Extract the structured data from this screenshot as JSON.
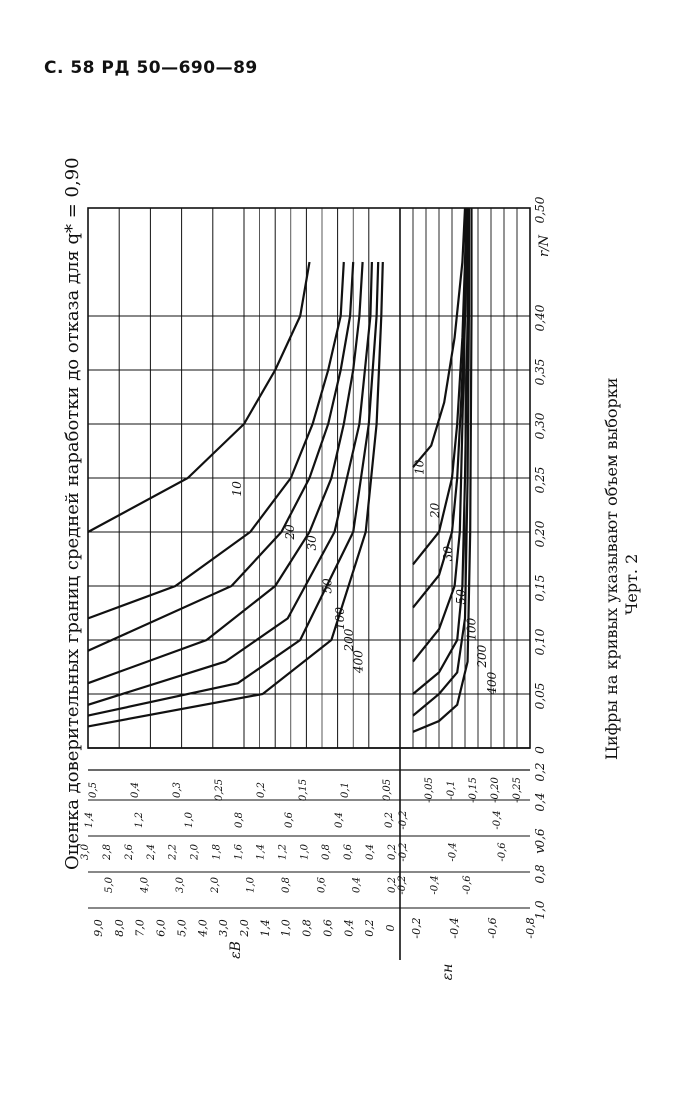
{
  "header": {
    "page_ref": "С. 58 РД 50—690—89"
  },
  "figure": {
    "title": "Оценка доверительных границ средней наработки до отказа для q* = 0,90",
    "note": "Цифры на кривых указывают объем выборки",
    "caption": "Черт. 2"
  },
  "chart_data": {
    "type": "line",
    "x_label": "r/N",
    "x_ticks": [
      "0",
      "0,05",
      "0,10",
      "0,15",
      "0,20",
      "0,25",
      "0,30",
      "0,35",
      "0,40",
      "0,50"
    ],
    "x_tick_values": [
      0,
      0.05,
      0.1,
      0.15,
      0.2,
      0.25,
      0.3,
      0.35,
      0.4,
      0.5
    ],
    "xlim": [
      0,
      0.5
    ],
    "eps_b": {
      "label": "εB",
      "ylim": [
        0,
        10
      ],
      "curves": [
        {
          "name": "10",
          "points": [
            [
              0.2,
              10
            ],
            [
              0.25,
              6.8
            ],
            [
              0.3,
              5.0
            ],
            [
              0.35,
              4.0
            ],
            [
              0.4,
              3.2
            ],
            [
              0.45,
              2.9
            ]
          ]
        },
        {
          "name": "20",
          "points": [
            [
              0.12,
              10
            ],
            [
              0.15,
              7.2
            ],
            [
              0.2,
              4.8
            ],
            [
              0.25,
              3.5
            ],
            [
              0.3,
              2.8
            ],
            [
              0.35,
              2.3
            ],
            [
              0.4,
              1.9
            ],
            [
              0.45,
              1.8
            ]
          ]
        },
        {
          "name": "30",
          "points": [
            [
              0.09,
              10
            ],
            [
              0.15,
              5.4
            ],
            [
              0.2,
              3.8
            ],
            [
              0.25,
              2.9
            ],
            [
              0.3,
              2.3
            ],
            [
              0.35,
              1.9
            ],
            [
              0.4,
              1.6
            ],
            [
              0.45,
              1.5
            ]
          ]
        },
        {
          "name": "50",
          "points": [
            [
              0.06,
              10
            ],
            [
              0.1,
              6.2
            ],
            [
              0.15,
              4.0
            ],
            [
              0.2,
              2.9
            ],
            [
              0.25,
              2.2
            ],
            [
              0.3,
              1.8
            ],
            [
              0.35,
              1.5
            ],
            [
              0.4,
              1.3
            ],
            [
              0.45,
              1.2
            ]
          ]
        },
        {
          "name": "100",
          "points": [
            [
              0.04,
              10
            ],
            [
              0.08,
              5.6
            ],
            [
              0.12,
              3.6
            ],
            [
              0.2,
              2.1
            ],
            [
              0.3,
              1.3
            ],
            [
              0.4,
              0.95
            ],
            [
              0.45,
              0.9
            ]
          ]
        },
        {
          "name": "200",
          "points": [
            [
              0.03,
              10
            ],
            [
              0.06,
              5.2
            ],
            [
              0.1,
              3.2
            ],
            [
              0.2,
              1.5
            ],
            [
              0.3,
              1.0
            ],
            [
              0.4,
              0.75
            ],
            [
              0.45,
              0.7
            ]
          ]
        },
        {
          "name": "400",
          "points": [
            [
              0.02,
              10
            ],
            [
              0.05,
              4.4
            ],
            [
              0.1,
              2.2
            ],
            [
              0.2,
              1.1
            ],
            [
              0.3,
              0.75
            ],
            [
              0.4,
              0.6
            ],
            [
              0.45,
              0.55
            ]
          ]
        }
      ],
      "curve_labels": [
        {
          "text": "10",
          "x": 0.24,
          "y": 5.1
        },
        {
          "text": "20",
          "x": 0.2,
          "y": 3.4
        },
        {
          "text": "30",
          "x": 0.19,
          "y": 2.7
        },
        {
          "text": "50",
          "x": 0.15,
          "y": 2.2
        },
        {
          "text": "100",
          "x": 0.12,
          "y": 1.8
        },
        {
          "text": "200",
          "x": 0.1,
          "y": 1.5
        },
        {
          "text": "400",
          "x": 0.08,
          "y": 1.2
        }
      ]
    },
    "eps_h": {
      "label": "εн",
      "ylim": [
        -1,
        0
      ],
      "curves": [
        {
          "name": "10",
          "points": [
            [
              0.26,
              -0.1
            ],
            [
              0.28,
              -0.24
            ],
            [
              0.32,
              -0.34
            ],
            [
              0.38,
              -0.42
            ],
            [
              0.45,
              -0.48
            ],
            [
              0.5,
              -0.5
            ]
          ]
        },
        {
          "name": "20",
          "points": [
            [
              0.17,
              -0.1
            ],
            [
              0.2,
              -0.3
            ],
            [
              0.25,
              -0.4
            ],
            [
              0.3,
              -0.44
            ],
            [
              0.38,
              -0.48
            ],
            [
              0.45,
              -0.5
            ],
            [
              0.5,
              -0.51
            ]
          ]
        },
        {
          "name": "30",
          "points": [
            [
              0.13,
              -0.1
            ],
            [
              0.16,
              -0.3
            ],
            [
              0.2,
              -0.4
            ],
            [
              0.25,
              -0.44
            ],
            [
              0.32,
              -0.47
            ],
            [
              0.4,
              -0.5
            ],
            [
              0.5,
              -0.51
            ]
          ]
        },
        {
          "name": "50",
          "points": [
            [
              0.08,
              -0.1
            ],
            [
              0.11,
              -0.3
            ],
            [
              0.15,
              -0.42
            ],
            [
              0.2,
              -0.46
            ],
            [
              0.3,
              -0.48
            ],
            [
              0.4,
              -0.5
            ],
            [
              0.5,
              -0.51
            ]
          ]
        },
        {
          "name": "100",
          "points": [
            [
              0.05,
              -0.1
            ],
            [
              0.07,
              -0.3
            ],
            [
              0.1,
              -0.44
            ],
            [
              0.15,
              -0.48
            ],
            [
              0.25,
              -0.5
            ],
            [
              0.4,
              -0.52
            ],
            [
              0.5,
              -0.52
            ]
          ]
        },
        {
          "name": "200",
          "points": [
            [
              0.03,
              -0.1
            ],
            [
              0.05,
              -0.3
            ],
            [
              0.07,
              -0.44
            ],
            [
              0.12,
              -0.5
            ],
            [
              0.25,
              -0.52
            ],
            [
              0.4,
              -0.53
            ],
            [
              0.5,
              -0.53
            ]
          ]
        },
        {
          "name": "400",
          "points": [
            [
              0.015,
              -0.1
            ],
            [
              0.025,
              -0.3
            ],
            [
              0.04,
              -0.44
            ],
            [
              0.08,
              -0.52
            ],
            [
              0.2,
              -0.54
            ],
            [
              0.4,
              -0.55
            ],
            [
              0.5,
              -0.55
            ]
          ]
        }
      ],
      "curve_labels": [
        {
          "text": "10",
          "x": 0.26,
          "y": -0.18
        },
        {
          "text": "20",
          "x": 0.22,
          "y": -0.3
        },
        {
          "text": "30",
          "x": 0.18,
          "y": -0.4
        },
        {
          "text": "50",
          "x": 0.14,
          "y": -0.5
        },
        {
          "text": "100",
          "x": 0.11,
          "y": -0.58
        },
        {
          "text": "200",
          "x": 0.085,
          "y": -0.66
        },
        {
          "text": "400",
          "x": 0.06,
          "y": -0.74
        }
      ]
    },
    "nomogram": {
      "v_label": "v",
      "v_ticks": [
        "1,0",
        "0,8",
        "0,6",
        "0,4",
        "0,2"
      ],
      "eps_b_scale": [
        "9,0",
        "8,0",
        "7,0",
        "6,0",
        "5,0",
        "4,0",
        "3,0",
        "2,0",
        "1,4",
        "1,0",
        "0,8",
        "0,6",
        "0,4",
        "0,2",
        "0"
      ],
      "eps_h_scale": [
        "-0,2",
        "-0,4",
        "-0,6",
        "-0,8"
      ],
      "eps_b_label": "εB",
      "eps_h_label": "εн",
      "v08_upper": [
        "5,0",
        "4,0",
        "3,0",
        "2,0",
        "1,0",
        "0,8",
        "0,6",
        "0,4",
        "0,2"
      ],
      "v06_upper": [
        "3,0",
        "2,8",
        "2,6",
        "2,4",
        "2,2",
        "2,0",
        "1,8",
        "1,6",
        "1,4",
        "1,2",
        "1,0",
        "0,8",
        "0,6",
        "0,4",
        "0,2"
      ],
      "v04_upper": [
        "1,4",
        "1,2",
        "1,0",
        "0,8",
        "0,6",
        "0,4",
        "0,2"
      ],
      "v02_upper": [
        "0,5",
        "0,4",
        "0,3",
        "0,25",
        "0,2",
        "0,15",
        "0,1",
        "0,05"
      ],
      "v08_lower": [
        "-0,2",
        "-0,4",
        "-0,6"
      ],
      "v06_lower": [
        "-0,2",
        "-0,4",
        "-0,6"
      ],
      "v04_lower": [
        "-0,2",
        "-0,4"
      ],
      "v02_lower": [
        "-0,05",
        "-0,1",
        "-0,15",
        "-0,20",
        "-0,25"
      ]
    }
  }
}
